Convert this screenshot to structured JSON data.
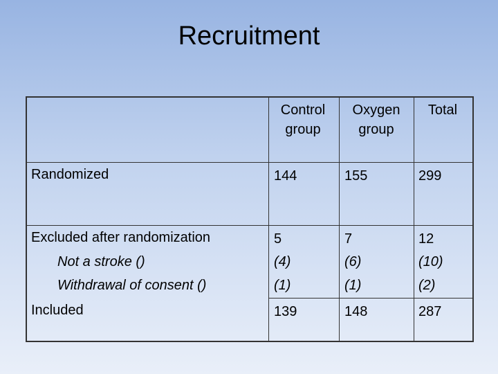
{
  "title": "Recruitment",
  "table": {
    "columns": [
      "Control group",
      "Oxygen group",
      "Total"
    ],
    "rows": [
      {
        "label": "Randomized",
        "cells": [
          "144",
          "155",
          "299"
        ]
      },
      {
        "label": "Excluded after randomization",
        "cells": [
          "5",
          "7",
          "12"
        ],
        "sub": [
          {
            "label": "Not a stroke ()",
            "cells": [
              "(4)",
              "(6)",
              "(10)"
            ]
          },
          {
            "label": "Withdrawal of consent ()",
            "cells": [
              "(1)",
              "(1)",
              "(2)"
            ]
          }
        ]
      },
      {
        "label": "Included",
        "cells": [
          "139",
          "148",
          "287"
        ]
      }
    ]
  }
}
